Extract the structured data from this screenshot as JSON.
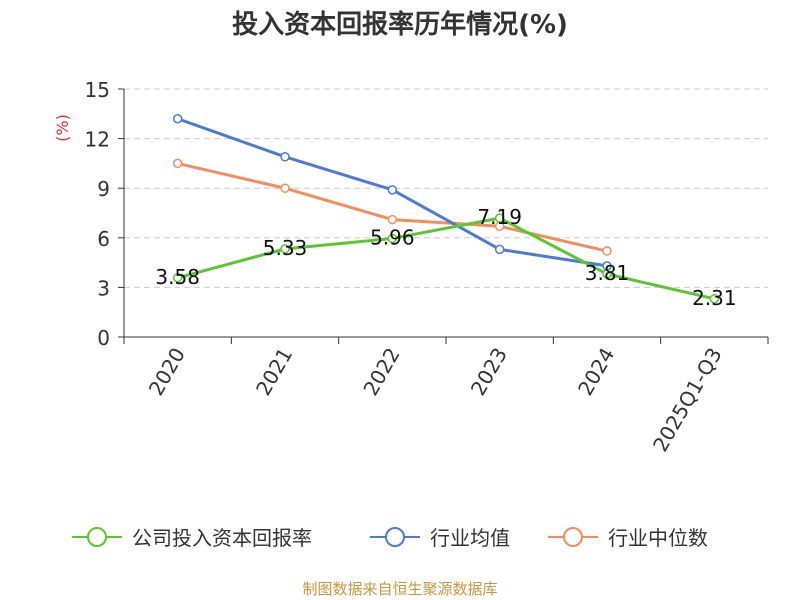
{
  "chart_data": {
    "type": "line",
    "title": "投入资本回报率历年情况(%)",
    "ylabel": "(%)",
    "xlabel": "",
    "categories": [
      "2020",
      "2021",
      "2022",
      "2023",
      "2024",
      "2025Q1-Q3"
    ],
    "ylim": [
      0,
      15
    ],
    "yticks": [
      0,
      3,
      6,
      9,
      12,
      15
    ],
    "grid": true,
    "legend_position": "bottom",
    "series": [
      {
        "name": "公司投入资本回报率",
        "color": "#5cc630",
        "values": [
          3.58,
          5.33,
          5.96,
          7.19,
          3.81,
          2.31
        ],
        "labels": [
          "3.58",
          "5.33",
          "5.96",
          "7.19",
          "3.81",
          "2.31"
        ]
      },
      {
        "name": "行业均值",
        "color": "#4b7bd8",
        "values": [
          13.2,
          10.9,
          8.9,
          5.3,
          4.3,
          null
        ]
      },
      {
        "name": "行业中位数",
        "color": "#f58c5a",
        "values": [
          10.5,
          9.0,
          7.1,
          6.7,
          5.2,
          null
        ]
      }
    ]
  },
  "footer": {
    "source": "制图数据来自恒生聚源数据库"
  }
}
